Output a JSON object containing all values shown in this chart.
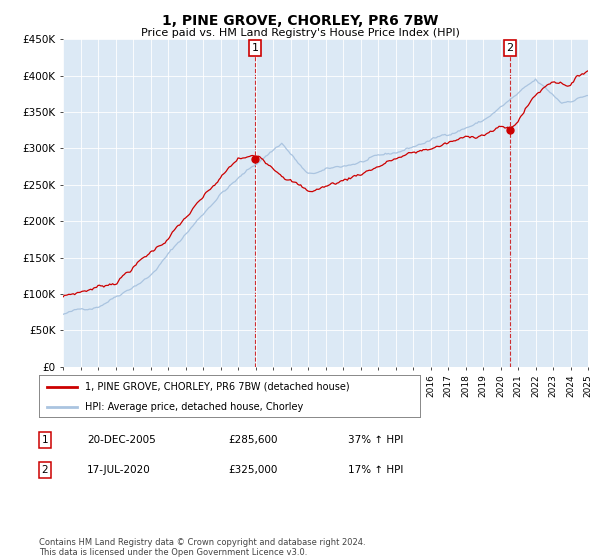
{
  "title": "1, PINE GROVE, CHORLEY, PR6 7BW",
  "subtitle": "Price paid vs. HM Land Registry's House Price Index (HPI)",
  "background_color": "#dce9f5",
  "red_line_color": "#cc0000",
  "blue_line_color": "#aac4e0",
  "sale1_date_label": "20-DEC-2005",
  "sale1_price": 285600,
  "sale1_year": 2005.97,
  "sale2_date_label": "17-JUL-2020",
  "sale2_price": 325000,
  "sale2_year": 2020.54,
  "legend_label_red": "1, PINE GROVE, CHORLEY, PR6 7BW (detached house)",
  "legend_label_blue": "HPI: Average price, detached house, Chorley",
  "footer": "Contains HM Land Registry data © Crown copyright and database right 2024.\nThis data is licensed under the Open Government Licence v3.0.",
  "yticks": [
    0,
    50000,
    100000,
    150000,
    200000,
    250000,
    300000,
    350000,
    400000,
    450000
  ],
  "xstart": 1995,
  "xend": 2025
}
